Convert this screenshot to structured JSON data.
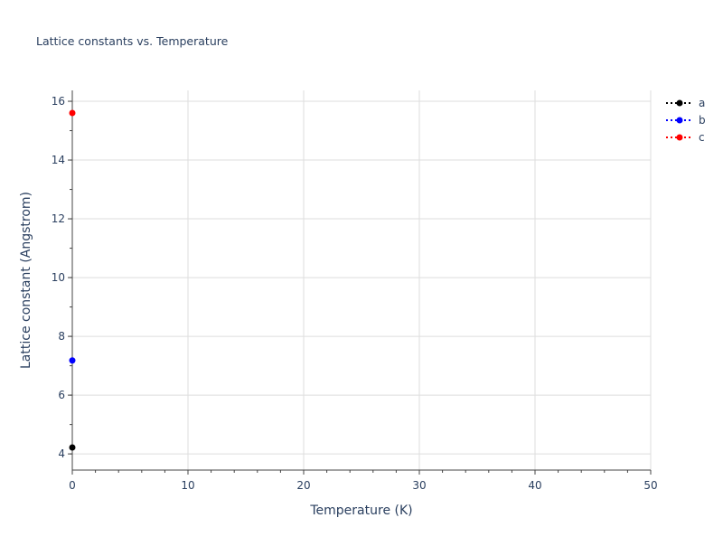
{
  "chart_data": {
    "type": "line",
    "title": "Lattice constants vs. Temperature",
    "xlabel": "Temperature (K)",
    "ylabel": "Lattice constant (Angstrom)",
    "xlim": [
      0,
      50
    ],
    "ylim": [
      3.45,
      16.37
    ],
    "xticks": [
      0,
      10,
      20,
      30,
      40,
      50
    ],
    "yticks": [
      4,
      6,
      8,
      10,
      12,
      14,
      16
    ],
    "grid": true,
    "legend_position": "top-right",
    "series": [
      {
        "name": "a",
        "color": "#000000",
        "x": [
          0
        ],
        "y": [
          4.22
        ]
      },
      {
        "name": "b",
        "color": "#0000ff",
        "x": [
          0
        ],
        "y": [
          7.18
        ]
      },
      {
        "name": "c",
        "color": "#ff0000",
        "x": [
          0
        ],
        "y": [
          15.6
        ]
      }
    ]
  }
}
